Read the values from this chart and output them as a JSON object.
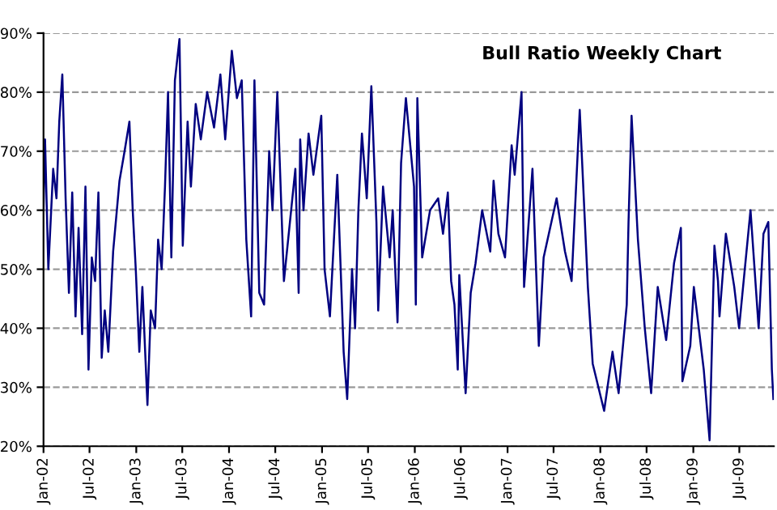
{
  "chart_data": {
    "type": "line",
    "title": "Bull Ratio Weekly Chart",
    "x": [
      "2002-01-01",
      "2002-01-07",
      "2002-01-20",
      "2002-02-08",
      "2002-02-21",
      "2002-03-04",
      "2002-03-16",
      "2002-03-29",
      "2002-04-11",
      "2002-04-24",
      "2002-05-07",
      "2002-05-19",
      "2002-06-02",
      "2002-06-15",
      "2002-06-27",
      "2002-07-10",
      "2002-07-23",
      "2002-08-05",
      "2002-08-18",
      "2002-08-30",
      "2002-09-13",
      "2002-10-02",
      "2002-10-27",
      "2002-11-16",
      "2002-12-05",
      "2002-12-18",
      "2002-12-30",
      "2003-01-13",
      "2003-01-25",
      "2003-02-14",
      "2003-02-27",
      "2003-03-16",
      "2003-03-28",
      "2003-04-11",
      "2003-04-24",
      "2003-05-06",
      "2003-05-19",
      "2003-06-02",
      "2003-06-20",
      "2003-07-03",
      "2003-07-22",
      "2003-08-04",
      "2003-08-23",
      "2003-09-12",
      "2003-10-07",
      "2003-11-03",
      "2003-11-28",
      "2003-12-17",
      "2004-01-12",
      "2004-02-01",
      "2004-02-20",
      "2004-03-09",
      "2004-03-28",
      "2004-04-10",
      "2004-04-29",
      "2004-05-18",
      "2004-06-07",
      "2004-06-20",
      "2004-07-09",
      "2004-08-04",
      "2004-09-18",
      "2004-10-01",
      "2004-10-07",
      "2004-10-20",
      "2004-11-09",
      "2004-11-28",
      "2004-12-29",
      "2005-01-11",
      "2005-02-01",
      "2005-03-02",
      "2005-03-27",
      "2005-04-10",
      "2005-04-29",
      "2005-05-11",
      "2005-05-24",
      "2005-06-07",
      "2005-06-26",
      "2005-07-14",
      "2005-08-03",
      "2005-08-10",
      "2005-08-29",
      "2005-09-24",
      "2005-10-06",
      "2005-10-25",
      "2005-11-08",
      "2005-11-27",
      "2005-12-29",
      "2006-01-05",
      "2006-01-11",
      "2006-01-30",
      "2006-03-02",
      "2006-04-03",
      "2006-04-22",
      "2006-05-11",
      "2006-05-24",
      "2006-06-06",
      "2006-06-19",
      "2006-06-25",
      "2006-07-20",
      "2006-08-09",
      "2006-08-28",
      "2006-09-23",
      "2006-10-25",
      "2006-11-07",
      "2006-11-26",
      "2006-12-22",
      "2007-01-17",
      "2007-01-29",
      "2007-02-25",
      "2007-03-07",
      "2007-04-09",
      "2007-05-04",
      "2007-05-23",
      "2007-07-13",
      "2007-08-15",
      "2007-09-10",
      "2007-10-12",
      "2007-11-13",
      "2007-12-02",
      "2008-01-16",
      "2008-02-18",
      "2008-03-13",
      "2008-04-14",
      "2008-04-21",
      "2008-05-03",
      "2008-05-28",
      "2008-06-24",
      "2008-07-19",
      "2008-08-14",
      "2008-09-16",
      "2008-10-17",
      "2008-11-13",
      "2008-11-19",
      "2008-12-20",
      "2009-01-03",
      "2009-02-11",
      "2009-03-06",
      "2009-03-25",
      "2009-04-08",
      "2009-04-14",
      "2009-05-09",
      "2009-06-11",
      "2009-06-30",
      "2009-08-14",
      "2009-09-15",
      "2009-10-04",
      "2009-10-23",
      "2009-11-06",
      "2009-11-12"
    ],
    "series": [
      {
        "color": "#000080",
        "values": [
          60,
          72,
          50,
          67,
          62,
          75,
          83,
          62,
          46,
          63,
          42,
          57,
          39,
          64,
          33,
          52,
          48,
          63,
          35,
          43,
          36,
          53,
          65,
          70,
          75,
          60,
          50,
          36,
          47,
          27,
          43,
          40,
          55,
          50,
          64,
          80,
          52,
          82,
          89,
          54,
          75,
          64,
          78,
          72,
          80,
          74,
          83,
          72,
          87,
          79,
          82,
          55,
          42,
          82,
          46,
          44,
          70,
          60,
          80,
          48,
          67,
          46,
          72,
          60,
          73,
          66,
          76,
          50,
          42,
          66,
          36,
          28,
          50,
          40,
          60,
          73,
          62,
          81,
          58,
          43,
          64,
          52,
          60,
          41,
          68,
          79,
          64,
          44,
          79,
          52,
          60,
          62,
          56,
          63,
          48,
          44,
          33,
          49,
          29,
          46,
          51,
          60,
          53,
          65,
          56,
          52,
          71,
          66,
          80,
          47,
          67,
          37,
          52,
          62,
          53,
          48,
          77,
          47,
          34,
          26,
          36,
          29,
          44,
          58,
          76,
          55,
          40,
          29,
          47,
          38,
          51,
          57,
          31,
          37,
          47,
          33,
          21,
          54,
          48,
          42,
          56,
          47,
          40,
          60,
          40,
          56,
          58,
          33,
          28
        ]
      }
    ],
    "xlim": [
      "2002-01-01",
      "2009-11-14"
    ],
    "xticks": [
      {
        "value": "2002-01-01",
        "label": "Jan-02"
      },
      {
        "value": "2002-07-01",
        "label": "Jul-02"
      },
      {
        "value": "2003-01-01",
        "label": "Jan-03"
      },
      {
        "value": "2003-07-01",
        "label": "Jul-03"
      },
      {
        "value": "2004-01-01",
        "label": "Jan-04"
      },
      {
        "value": "2004-07-01",
        "label": "Jul-04"
      },
      {
        "value": "2005-01-01",
        "label": "Jan-05"
      },
      {
        "value": "2005-07-01",
        "label": "Jul-05"
      },
      {
        "value": "2006-01-01",
        "label": "Jan-06"
      },
      {
        "value": "2006-07-01",
        "label": "Jul-06"
      },
      {
        "value": "2007-01-01",
        "label": "Jan-07"
      },
      {
        "value": "2007-07-01",
        "label": "Jul-07"
      },
      {
        "value": "2008-01-01",
        "label": "Jan-08"
      },
      {
        "value": "2008-07-01",
        "label": "Jul-08"
      },
      {
        "value": "2009-01-01",
        "label": "Jan-09"
      },
      {
        "value": "2009-07-01",
        "label": "Jul-09"
      }
    ],
    "ylim": [
      20,
      90
    ],
    "yticks": [
      {
        "value": 20,
        "label": "20%"
      },
      {
        "value": 30,
        "label": "30%"
      },
      {
        "value": 40,
        "label": "40%"
      },
      {
        "value": 50,
        "label": "50%"
      },
      {
        "value": 60,
        "label": "60%"
      },
      {
        "value": 70,
        "label": "70%"
      },
      {
        "value": 80,
        "label": "80%"
      },
      {
        "value": 90,
        "label": "90%"
      }
    ],
    "grid": "y",
    "legend": false,
    "marker": "none",
    "line_style": "solid"
  }
}
